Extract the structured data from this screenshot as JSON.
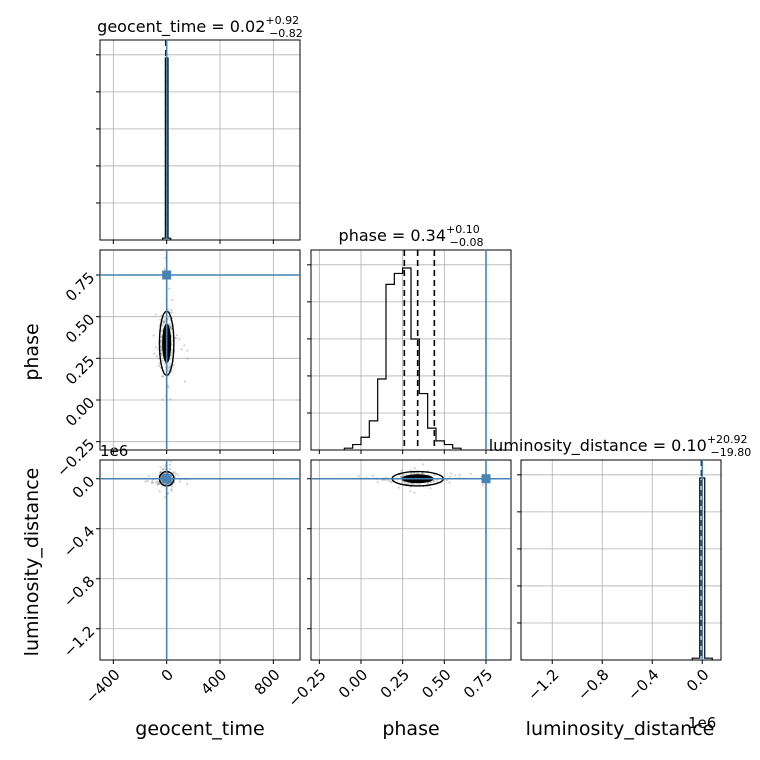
{
  "chart_data": {
    "type": "corner",
    "parameters": [
      "geocent_time",
      "phase",
      "luminosity_distance"
    ],
    "truths": {
      "geocent_time": 0,
      "phase": 0.75,
      "luminosity_distance": 0
    },
    "titles": {
      "geocent_time": {
        "prefix": "geocent_time = 0.02",
        "sup": "+0.92",
        "sub": "−0.82"
      },
      "phase": {
        "prefix": "phase = 0.34",
        "sup": "+0.10",
        "sub": "−0.08"
      },
      "luminosity_distance": {
        "prefix": "luminosity_distance = 0.10",
        "sup": "+20.92",
        "sub": "−19.80"
      }
    },
    "axes": {
      "geocent_time": {
        "range": [
          -500,
          1000
        ],
        "ticks": [
          -400,
          0,
          400,
          800
        ],
        "tick_labels": [
          "−400",
          "0",
          "400",
          "800"
        ],
        "label": "geocent_time"
      },
      "phase": {
        "range": [
          -0.3,
          0.9
        ],
        "ticks": [
          -0.25,
          0.0,
          0.25,
          0.5,
          0.75
        ],
        "tick_labels": [
          "−0.25",
          "0.00",
          "0.25",
          "0.50",
          "0.75"
        ],
        "label": "phase"
      },
      "luminosity_distance": {
        "range": [
          -1.45,
          0.15
        ],
        "ticks": [
          -1.2,
          -0.8,
          -0.4,
          0.0
        ],
        "tick_labels": [
          "−1.2",
          "−0.8",
          "−0.4",
          "0.0"
        ],
        "label": "luminosity_distance",
        "offset_text": "1e6"
      }
    },
    "histograms": {
      "geocent_time": {
        "edges": [
          -30,
          -10,
          10,
          30
        ],
        "counts": [
          0.01,
          1.0,
          0.01
        ]
      },
      "phase": {
        "edges": [
          -0.1,
          -0.05,
          0.0,
          0.05,
          0.1,
          0.15,
          0.2,
          0.25,
          0.3,
          0.35,
          0.4,
          0.45,
          0.5,
          0.55,
          0.6
        ],
        "counts": [
          0.01,
          0.03,
          0.07,
          0.16,
          0.39,
          0.91,
          0.97,
          1.0,
          0.61,
          0.31,
          0.12,
          0.05,
          0.03,
          0.01
        ],
        "quantile_lines": [
          0.26,
          0.34,
          0.44
        ]
      },
      "luminosity_distance": {
        "edges": [
          -0.08,
          -0.02,
          0.02,
          0.08
        ],
        "counts": [
          0.01,
          1.0,
          0.01
        ]
      }
    },
    "grid": true
  }
}
